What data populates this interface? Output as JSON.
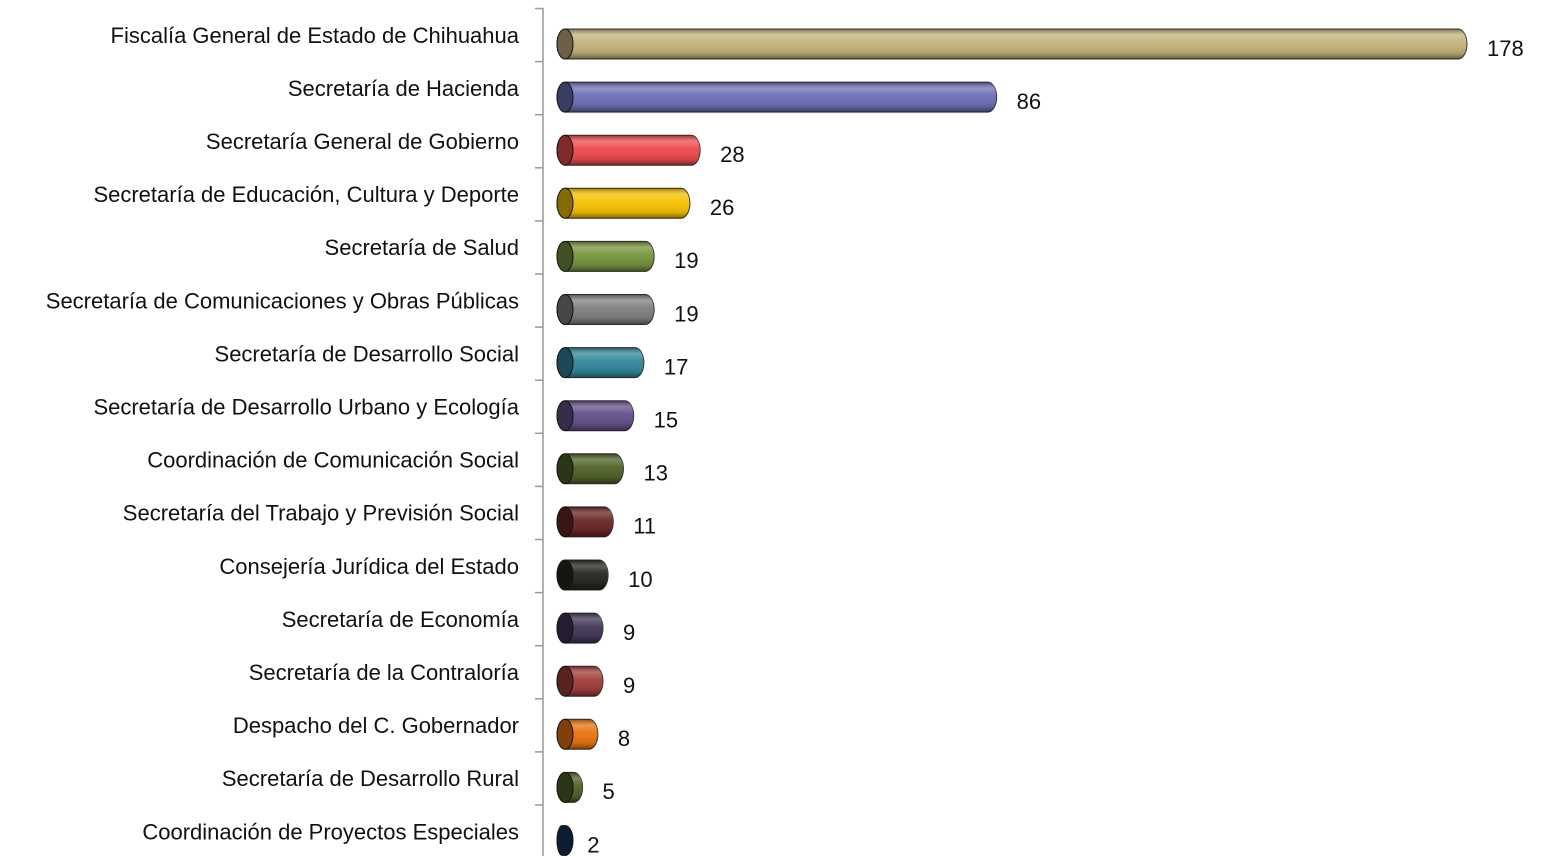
{
  "chart_data": {
    "type": "bar",
    "orientation": "horizontal",
    "categories": [
      "Fiscalía General de Estado de Chihuahua",
      "Secretaría de Hacienda",
      "Secretaría General de Gobierno",
      "Secretaría de Educación, Cultura y Deporte",
      "Secretaría de Salud",
      "Secretaría de Comunicaciones y Obras Públicas",
      "Secretaría de Desarrollo Social",
      "Secretaría de Desarrollo Urbano y Ecología",
      "Coordinación de Comunicación Social",
      "Secretaría del Trabajo y Previsión Social",
      "Consejería Jurídica del Estado",
      "Secretaría de Economía",
      "Secretaría de la Contraloría",
      "Despacho del C. Gobernador",
      "Secretaría de Desarrollo Rural",
      "Coordinación de Proyectos Especiales"
    ],
    "values": [
      178,
      86,
      28,
      26,
      19,
      19,
      17,
      15,
      13,
      11,
      10,
      9,
      9,
      8,
      5,
      2
    ],
    "colors": [
      "#c4b27a",
      "#6a6fb3",
      "#ee4a4c",
      "#f5c200",
      "#77933c",
      "#7f7f7f",
      "#31869c",
      "#62508a",
      "#4f6228",
      "#6a2624",
      "#262620",
      "#433658",
      "#a23d3b",
      "#e8740e",
      "#4f6228",
      "#17375e"
    ]
  }
}
